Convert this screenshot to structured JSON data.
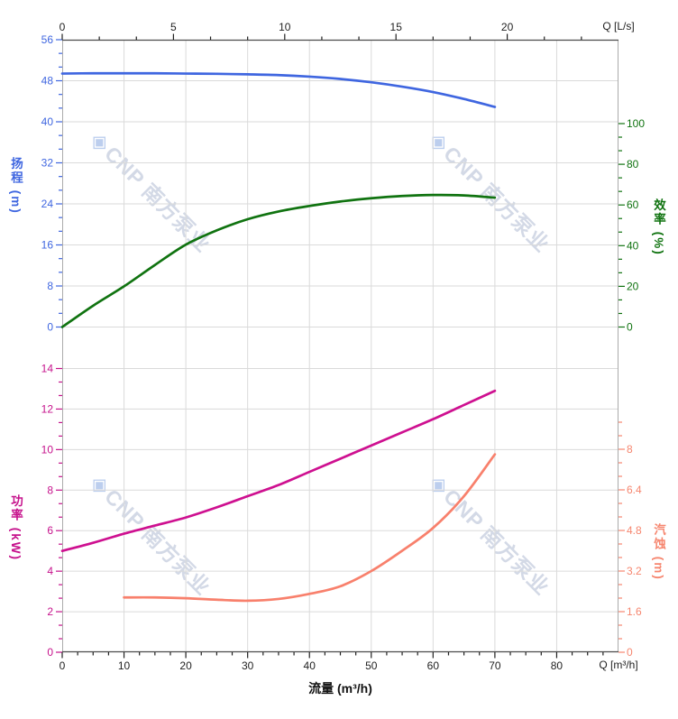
{
  "watermark": {
    "logo": "◈",
    "text": "CNP 南方泵业"
  },
  "chart_data": {
    "type": "line",
    "grid": true,
    "legend": false,
    "x_axis_bottom": {
      "unit_label": "Q [m³/h]",
      "title_label": "流量 (m³/h)",
      "ticks": [
        0,
        10,
        20,
        30,
        40,
        50,
        60,
        70,
        80
      ],
      "range": [
        0,
        90
      ],
      "minor_step": 2.5
    },
    "x_axis_top": {
      "unit_label": "Q [L/s]",
      "ticks": [
        0,
        5,
        10,
        15,
        20
      ],
      "range": [
        0,
        25
      ]
    },
    "y_axes": {
      "head": {
        "title": "扬程 (m)",
        "color": "#3F66E0",
        "ticks": [
          0,
          8,
          16,
          24,
          32,
          40,
          48,
          56
        ],
        "range": [
          0,
          56
        ]
      },
      "efficiency": {
        "title": "效率 (%)",
        "color": "#107310",
        "ticks": [
          0,
          20,
          40,
          60,
          80,
          100
        ],
        "range": [
          0,
          100
        ]
      },
      "power": {
        "title": "功率 (kW)",
        "color": "#C6128C",
        "ticks": [
          0,
          2,
          4,
          6,
          8,
          10,
          12,
          14
        ],
        "range": [
          0,
          14
        ]
      },
      "npsh": {
        "title": "汽蚀 (m)",
        "color": "#F6866F",
        "ticks": [
          0,
          1.6,
          3.2,
          4.8,
          6.4,
          8
        ],
        "range": [
          0,
          8
        ],
        "extra_minor_above": 2
      }
    },
    "series": [
      {
        "id": "head-curve",
        "name": "扬程",
        "axis": "head",
        "color": "#3F66E0",
        "points": [
          [
            0,
            49.4
          ],
          [
            5,
            49.45
          ],
          [
            10,
            49.45
          ],
          [
            15,
            49.45
          ],
          [
            20,
            49.4
          ],
          [
            25,
            49.35
          ],
          [
            30,
            49.25
          ],
          [
            35,
            49.1
          ],
          [
            40,
            48.8
          ],
          [
            45,
            48.35
          ],
          [
            50,
            47.7
          ],
          [
            55,
            46.85
          ],
          [
            60,
            45.8
          ],
          [
            65,
            44.45
          ],
          [
            70,
            42.9
          ]
        ]
      },
      {
        "id": "efficiency-curve",
        "name": "效率",
        "axis": "efficiency",
        "color": "#107310",
        "points": [
          [
            0,
            0
          ],
          [
            5,
            10.5
          ],
          [
            10,
            20
          ],
          [
            15,
            30.5
          ],
          [
            20,
            40.5
          ],
          [
            25,
            47.5
          ],
          [
            30,
            53
          ],
          [
            35,
            56.8
          ],
          [
            40,
            59.5
          ],
          [
            45,
            61.7
          ],
          [
            50,
            63.3
          ],
          [
            55,
            64.4
          ],
          [
            60,
            64.9
          ],
          [
            65,
            64.7
          ],
          [
            70,
            63.6
          ]
        ]
      },
      {
        "id": "power-curve",
        "name": "功率",
        "axis": "power",
        "color": "#CE1090",
        "points": [
          [
            0,
            5.0
          ],
          [
            5,
            5.4
          ],
          [
            10,
            5.85
          ],
          [
            15,
            6.25
          ],
          [
            20,
            6.65
          ],
          [
            25,
            7.15
          ],
          [
            30,
            7.7
          ],
          [
            35,
            8.25
          ],
          [
            40,
            8.9
          ],
          [
            45,
            9.55
          ],
          [
            50,
            10.2
          ],
          [
            55,
            10.85
          ],
          [
            60,
            11.5
          ],
          [
            65,
            12.2
          ],
          [
            70,
            12.9
          ]
        ]
      },
      {
        "id": "npsh-curve",
        "name": "汽蚀",
        "axis": "npsh",
        "color": "#F8806C",
        "points": [
          [
            10,
            2.16
          ],
          [
            15,
            2.16
          ],
          [
            20,
            2.13
          ],
          [
            25,
            2.07
          ],
          [
            30,
            2.03
          ],
          [
            35,
            2.1
          ],
          [
            40,
            2.3
          ],
          [
            45,
            2.6
          ],
          [
            50,
            3.2
          ],
          [
            55,
            4.0
          ],
          [
            60,
            4.9
          ],
          [
            65,
            6.15
          ],
          [
            70,
            7.8
          ]
        ]
      }
    ]
  }
}
